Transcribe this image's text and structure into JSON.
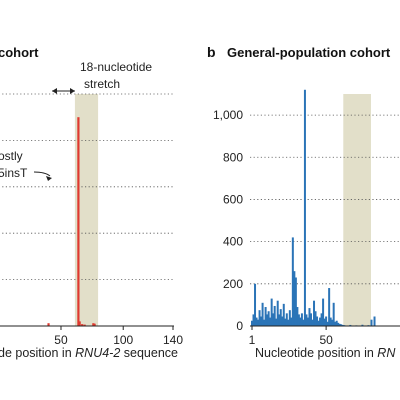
{
  "chart_data": [
    {
      "type": "bar",
      "panel": "a",
      "title": "cohort",
      "xlabel_parts": [
        "de position in ",
        "RNU4-2",
        " sequence"
      ],
      "ylabel": "",
      "x_ticks": [
        "50",
        "100",
        "140"
      ],
      "x_tick_values": [
        50,
        100,
        140
      ],
      "xlim": [
        1,
        140
      ],
      "ylim": [
        0,
        1000
      ],
      "y_grid_values": [
        0,
        200,
        400,
        600,
        800,
        1000
      ],
      "grid": true,
      "highlight_band": [
        62,
        79
      ],
      "highlight_color": "#e2dfc9",
      "series": [
        {
          "color": "#e0392f",
          "points": [
            {
              "x": 40,
              "y": 12
            },
            {
              "x": 64,
              "y": 900
            },
            {
              "x": 65,
              "y": 20
            },
            {
              "x": 67,
              "y": 8
            },
            {
              "x": 69,
              "y": 6
            },
            {
              "x": 76,
              "y": 12
            },
            {
              "x": 77,
              "y": 10
            }
          ]
        }
      ],
      "annotations": {
        "stretch_line1": "18-nucleotide",
        "stretch_line2": "stretch",
        "mostly_line1": "ostly",
        "mostly_line2": "5insT"
      }
    },
    {
      "type": "bar",
      "panel": "b",
      "panel_letter": "b",
      "title": "General-population cohort",
      "xlabel_parts": [
        "Nucleotide position in ",
        "RN"
      ],
      "ylabel": "",
      "x_ticks": [
        "1",
        "50"
      ],
      "x_tick_values": [
        1,
        50
      ],
      "xlim": [
        1,
        120
      ],
      "ylim": [
        0,
        1100
      ],
      "y_ticks": [
        "0",
        "200",
        "400",
        "600",
        "800",
        "1,000"
      ],
      "y_tick_values": [
        0,
        200,
        400,
        600,
        800,
        1000
      ],
      "grid": true,
      "highlight_band": [
        62,
        79
      ],
      "highlight_color": "#e2dfc9",
      "series": [
        {
          "color": "#2b74b7",
          "points": [
            {
              "x": 1,
              "y": 25
            },
            {
              "x": 2,
              "y": 55
            },
            {
              "x": 3,
              "y": 200
            },
            {
              "x": 4,
              "y": 40
            },
            {
              "x": 5,
              "y": 30
            },
            {
              "x": 6,
              "y": 75
            },
            {
              "x": 7,
              "y": 45
            },
            {
              "x": 8,
              "y": 110
            },
            {
              "x": 9,
              "y": 30
            },
            {
              "x": 10,
              "y": 90
            },
            {
              "x": 11,
              "y": 55
            },
            {
              "x": 12,
              "y": 70
            },
            {
              "x": 13,
              "y": 40
            },
            {
              "x": 14,
              "y": 130
            },
            {
              "x": 15,
              "y": 60
            },
            {
              "x": 16,
              "y": 95
            },
            {
              "x": 17,
              "y": 35
            },
            {
              "x": 18,
              "y": 120
            },
            {
              "x": 19,
              "y": 55
            },
            {
              "x": 20,
              "y": 80
            },
            {
              "x": 21,
              "y": 45
            },
            {
              "x": 22,
              "y": 105
            },
            {
              "x": 23,
              "y": 35
            },
            {
              "x": 24,
              "y": 60
            },
            {
              "x": 25,
              "y": 30
            },
            {
              "x": 26,
              "y": 75
            },
            {
              "x": 27,
              "y": 40
            },
            {
              "x": 28,
              "y": 420
            },
            {
              "x": 29,
              "y": 260
            },
            {
              "x": 30,
              "y": 230
            },
            {
              "x": 31,
              "y": 90
            },
            {
              "x": 32,
              "y": 55
            },
            {
              "x": 33,
              "y": 40
            },
            {
              "x": 34,
              "y": 60
            },
            {
              "x": 35,
              "y": 30
            },
            {
              "x": 36,
              "y": 1120
            },
            {
              "x": 37,
              "y": 55
            },
            {
              "x": 38,
              "y": 40
            },
            {
              "x": 39,
              "y": 85
            },
            {
              "x": 40,
              "y": 60
            },
            {
              "x": 41,
              "y": 30
            },
            {
              "x": 42,
              "y": 120
            },
            {
              "x": 43,
              "y": 70
            },
            {
              "x": 44,
              "y": 45
            },
            {
              "x": 45,
              "y": 25
            },
            {
              "x": 46,
              "y": 40
            },
            {
              "x": 47,
              "y": 60
            },
            {
              "x": 48,
              "y": 130
            },
            {
              "x": 49,
              "y": 35
            },
            {
              "x": 50,
              "y": 45
            },
            {
              "x": 51,
              "y": 20
            },
            {
              "x": 52,
              "y": 180
            },
            {
              "x": 53,
              "y": 40
            },
            {
              "x": 54,
              "y": 30
            },
            {
              "x": 55,
              "y": 110
            },
            {
              "x": 56,
              "y": 20
            },
            {
              "x": 57,
              "y": 25
            },
            {
              "x": 58,
              "y": 15
            },
            {
              "x": 59,
              "y": 10
            },
            {
              "x": 60,
              "y": 8
            },
            {
              "x": 61,
              "y": 5
            },
            {
              "x": 62,
              "y": 4
            },
            {
              "x": 66,
              "y": 5
            },
            {
              "x": 70,
              "y": 3
            },
            {
              "x": 74,
              "y": 6
            },
            {
              "x": 78,
              "y": 4
            },
            {
              "x": 80,
              "y": 30
            },
            {
              "x": 82,
              "y": 45
            }
          ]
        }
      ]
    }
  ]
}
